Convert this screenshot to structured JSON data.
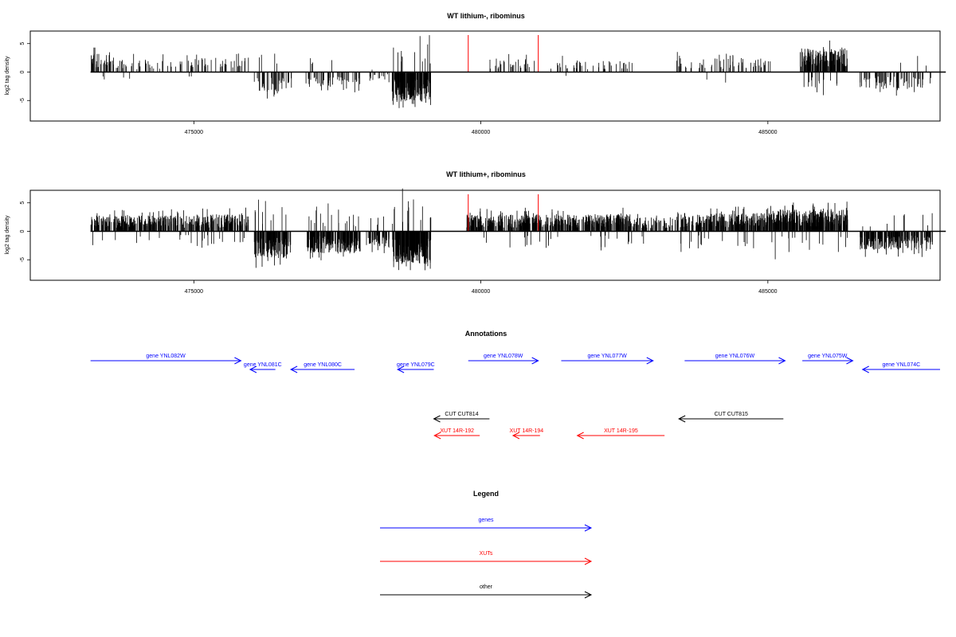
{
  "colors": {
    "genes": "#0000ff",
    "xuts": "#ff0000",
    "other": "#000000",
    "bars": "#000000"
  },
  "chart_data": [
    {
      "type": "bar",
      "title": "WT lithium-, ribominus",
      "ylabel": "log2 tag density",
      "xlim": [
        472150,
        488000
      ],
      "ylim": [
        -8.6,
        7.2
      ],
      "xticks": [
        475000,
        480000,
        485000
      ],
      "xtick_labels": [
        "475000",
        "480000",
        "485000"
      ],
      "yticks": [
        -5,
        0,
        5
      ],
      "ytick_labels": [
        "-5",
        "0",
        "5"
      ],
      "baseline_range": [
        473200,
        488100
      ],
      "red_lines": [
        479780,
        481000
      ],
      "red_line_top": 6.5,
      "segments": [
        {
          "from": 473200,
          "to": 473600,
          "dir": 1,
          "amp": 2.8,
          "density": 14
        },
        {
          "from": 473600,
          "to": 475050,
          "dir": 1,
          "amp": 2.0,
          "density": 5
        },
        {
          "from": 475050,
          "to": 475950,
          "dir": 1,
          "amp": 2.2,
          "density": 5
        },
        {
          "from": 476050,
          "to": 476700,
          "dir": -1,
          "amp": 3.0,
          "density": 10
        },
        {
          "from": 476950,
          "to": 477900,
          "dir": -1,
          "amp": 2.4,
          "density": 8
        },
        {
          "from": 478000,
          "to": 478400,
          "dir": -1,
          "amp": 1.5,
          "density": 5
        },
        {
          "from": 478450,
          "to": 479130,
          "dir": -1,
          "amp": 4.5,
          "density": 40
        },
        {
          "from": 480150,
          "to": 480950,
          "dir": 1,
          "amp": 2.0,
          "density": 5
        },
        {
          "from": 481200,
          "to": 482650,
          "dir": 1,
          "amp": 1.8,
          "density": 4
        },
        {
          "from": 483400,
          "to": 485100,
          "dir": 1,
          "amp": 2.2,
          "density": 5
        },
        {
          "from": 485550,
          "to": 486390,
          "dir": 1,
          "amp": 3.6,
          "density": 30
        },
        {
          "from": 486600,
          "to": 487870,
          "dir": -1,
          "amp": 2.6,
          "density": 8
        }
      ]
    },
    {
      "type": "bar",
      "title": "WT lithium+, ribominus",
      "ylabel": "log2 tag density",
      "xlim": [
        472150,
        488000
      ],
      "ylim": [
        -8.6,
        7.2
      ],
      "xticks": [
        475000,
        480000,
        485000
      ],
      "xtick_labels": [
        "475000",
        "480000",
        "485000"
      ],
      "yticks": [
        -5,
        0,
        5
      ],
      "ytick_labels": [
        "-5",
        "0",
        "5"
      ],
      "baseline_range": [
        473200,
        488100
      ],
      "red_lines": [
        479780,
        481000
      ],
      "red_line_top": 6.5,
      "segments": [
        {
          "from": 473200,
          "to": 475050,
          "dir": 1,
          "amp": 2.4,
          "density": 22
        },
        {
          "from": 475050,
          "to": 475950,
          "dir": 1,
          "amp": 2.6,
          "density": 22
        },
        {
          "from": 476050,
          "to": 476700,
          "dir": -1,
          "amp": 4.0,
          "density": 30
        },
        {
          "from": 476950,
          "to": 477900,
          "dir": -1,
          "amp": 3.4,
          "density": 32
        },
        {
          "from": 478000,
          "to": 478400,
          "dir": -1,
          "amp": 2.4,
          "density": 22
        },
        {
          "from": 478450,
          "to": 479130,
          "dir": -1,
          "amp": 5.0,
          "density": 45
        },
        {
          "from": 479750,
          "to": 482650,
          "dir": 1,
          "amp": 2.6,
          "density": 24
        },
        {
          "from": 482650,
          "to": 483400,
          "dir": 1,
          "amp": 2.2,
          "density": 14
        },
        {
          "from": 483400,
          "to": 485100,
          "dir": 1,
          "amp": 2.8,
          "density": 24
        },
        {
          "from": 485100,
          "to": 486390,
          "dir": 1,
          "amp": 3.4,
          "density": 32
        },
        {
          "from": 486600,
          "to": 487870,
          "dir": -1,
          "amp": 2.8,
          "density": 22
        }
      ]
    }
  ],
  "annotations": {
    "title": "Annotations",
    "features": [
      {
        "label": "gene YNL082W",
        "type": "gene",
        "start": 473200,
        "end": 475820,
        "strand": "+",
        "row": 0
      },
      {
        "label": "gene YNL081C",
        "type": "gene",
        "start": 475980,
        "end": 476420,
        "strand": "-",
        "row": 1
      },
      {
        "label": "gene YNL080C",
        "type": "gene",
        "start": 476690,
        "end": 477800,
        "strand": "-",
        "row": 1
      },
      {
        "label": "gene YNL079C",
        "type": "gene",
        "start": 478550,
        "end": 479180,
        "strand": "-",
        "row": 1
      },
      {
        "label": "gene YNL078W",
        "type": "gene",
        "start": 479780,
        "end": 481000,
        "strand": "+",
        "row": 0
      },
      {
        "label": "gene YNL077W",
        "type": "gene",
        "start": 481400,
        "end": 483000,
        "strand": "+",
        "row": 0
      },
      {
        "label": "gene YNL076W",
        "type": "gene",
        "start": 483550,
        "end": 485300,
        "strand": "+",
        "row": 0
      },
      {
        "label": "gene YNL075W",
        "type": "gene",
        "start": 485600,
        "end": 486480,
        "strand": "+",
        "row": 0
      },
      {
        "label": "gene YNL074C",
        "type": "gene",
        "start": 486650,
        "end": 488000,
        "strand": "-",
        "row": 1
      },
      {
        "label": "CUT CUT814",
        "type": "other",
        "start": 479180,
        "end": 480150,
        "strand": "-",
        "row": 2
      },
      {
        "label": "CUT CUT815",
        "type": "other",
        "start": 483450,
        "end": 485270,
        "strand": "-",
        "row": 2
      },
      {
        "label": "XUT 14R-192",
        "type": "xut",
        "start": 479190,
        "end": 479980,
        "strand": "-",
        "row": 3
      },
      {
        "label": "XUT 14R-194",
        "type": "xut",
        "start": 480560,
        "end": 481030,
        "strand": "-",
        "row": 3
      },
      {
        "label": "XUT 14R-195",
        "type": "xut",
        "start": 481680,
        "end": 483200,
        "strand": "-",
        "row": 3
      }
    ]
  },
  "legend": {
    "title": "Legend",
    "items": [
      {
        "label": "genes",
        "type": "gene"
      },
      {
        "label": "XUTs",
        "type": "xut"
      },
      {
        "label": "other",
        "type": "other"
      }
    ]
  }
}
